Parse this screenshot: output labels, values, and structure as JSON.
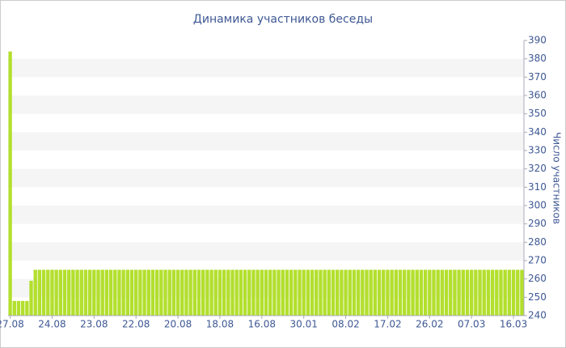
{
  "chart_data": {
    "type": "bar",
    "title": "Динамика участников беседы",
    "y_label": "Число участников",
    "color": "#b3df2e",
    "grid": true,
    "categories": [
      "27.08",
      null,
      null,
      null,
      null,
      null,
      null,
      null,
      null,
      null,
      "24.08",
      null,
      null,
      null,
      null,
      null,
      null,
      null,
      null,
      null,
      "23.08",
      null,
      null,
      null,
      null,
      null,
      null,
      null,
      null,
      null,
      "22.08",
      null,
      null,
      null,
      null,
      null,
      null,
      null,
      null,
      null,
      "20.08",
      null,
      null,
      null,
      null,
      null,
      null,
      null,
      null,
      null,
      "18.08",
      null,
      null,
      null,
      null,
      null,
      null,
      null,
      null,
      null,
      "16.08",
      null,
      null,
      null,
      null,
      null,
      null,
      null,
      null,
      null,
      "30.01",
      null,
      null,
      null,
      null,
      null,
      null,
      null,
      null,
      null,
      "08.02",
      null,
      null,
      null,
      null,
      null,
      null,
      null,
      null,
      null,
      "17.02",
      null,
      null,
      null,
      null,
      null,
      null,
      null,
      null,
      null,
      "26.02",
      null,
      null,
      null,
      null,
      null,
      null,
      null,
      null,
      null,
      "07.03",
      null,
      null,
      null,
      null,
      null,
      null,
      null,
      null,
      null,
      "16.03",
      null,
      null
    ],
    "values": [
      384,
      248,
      248,
      248,
      248,
      259,
      265,
      265,
      265,
      265,
      265,
      265,
      265,
      265,
      265,
      265,
      265,
      265,
      265,
      265,
      265,
      265,
      265,
      265,
      265,
      265,
      265,
      265,
      265,
      265,
      265,
      265,
      265,
      265,
      265,
      265,
      265,
      265,
      265,
      265,
      265,
      265,
      265,
      265,
      265,
      265,
      265,
      265,
      265,
      265,
      265,
      265,
      265,
      265,
      265,
      265,
      265,
      265,
      265,
      265,
      265,
      265,
      265,
      265,
      265,
      265,
      265,
      265,
      265,
      265,
      265,
      265,
      265,
      265,
      265,
      265,
      265,
      265,
      265,
      265,
      265,
      265,
      265,
      265,
      265,
      265,
      265,
      265,
      265,
      265,
      265,
      265,
      265,
      265,
      265,
      265,
      265,
      265,
      265,
      265,
      265,
      265,
      265,
      265,
      265,
      265,
      265,
      265,
      265,
      265,
      265,
      265,
      265,
      265,
      265,
      265,
      265,
      265,
      265,
      265,
      265,
      265,
      265
    ],
    "ylim": [
      240,
      390
    ],
    "yticks": [
      240,
      250,
      260,
      270,
      280,
      290,
      300,
      310,
      320,
      330,
      340,
      350,
      360,
      370,
      380,
      390
    ]
  }
}
